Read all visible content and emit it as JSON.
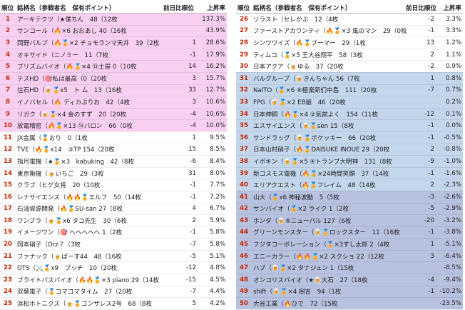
{
  "headers": {
    "rank": "順位",
    "name": "銘柄名（参戦者名　保有ポイント）",
    "diff": "前日比順位",
    "rate": "上昇率"
  },
  "left_rows": [
    {
      "rank": "1",
      "name": "アーキテクツ（★僕ちん　48（12枚",
      "diff": "",
      "rate": "137.3%",
      "band": "pink"
    },
    {
      "rank": "2",
      "name": "サンコール（🔥×6 おおあし 40（16枚",
      "diff": "",
      "rate": "43.9%",
      "band": "pink"
    },
    {
      "rank": "3",
      "name": "岡野バルブ（🔥🏅×2 チョモランマ天井　39（2枚",
      "diff": "1",
      "rate": "28.6%",
      "band": "pink"
    },
    {
      "rank": "4",
      "name": "オキサイド（ニノミー　11（7枚",
      "diff": "-1",
      "rate": "17.9%",
      "band": "pink"
    },
    {
      "rank": "5",
      "name": "プリズムバイオ（🔥🏅×4 ⑬土屋 0（10枚",
      "diff": "14",
      "rate": "16.2%",
      "band": "pink"
    },
    {
      "rank": "6",
      "name": "テスHD（🎯私は最高（0（20枚",
      "diff": "3",
      "rate": "15.7%",
      "band": "pink"
    },
    {
      "rank": "7",
      "name": "住石HD（🍺🏅x5　ト ム　13（16枚",
      "diff": "33",
      "rate": "12.7%",
      "band": "pink"
    },
    {
      "rank": "8",
      "name": "イノバセル（🔥 ディカぶりお　42（4枚",
      "diff": "3",
      "rate": "10.6%",
      "band": "pink"
    },
    {
      "rank": "9",
      "name": "リガク（🍺🏅×4 金のすず　20（20枚",
      "diff": "-4",
      "rate": "10.6%",
      "band": "pink"
    },
    {
      "rank": "10",
      "name": "放電精密（🔥🏅×13 ⑬バロン　66（0枚",
      "diff": "-4",
      "rate": "10.0%",
      "band": "pink"
    },
    {
      "rank": "11",
      "name": "JX金属（🏅おり　0（1枚",
      "diff": "1",
      "rate": "9.5%",
      "band": "white"
    },
    {
      "rank": "12",
      "name": "TVE（🔥🏅x14　③TP 154（20枚",
      "diff": "15",
      "rate": "8.5%",
      "band": "white"
    },
    {
      "rank": "13",
      "name": "指月電機（★🏅×3　kabuking　42（8枚",
      "diff": "-6",
      "rate": "8.4%",
      "band": "white"
    },
    {
      "rank": "14",
      "name": "東京衡機（🍺いちご　29（3枚",
      "diff": "31",
      "rate": "8.0%",
      "band": "white"
    },
    {
      "rank": "15",
      "name": "クラブ（ヒゲ女将　20（10枚",
      "diff": "-1",
      "rate": "7.7%",
      "band": "white"
    },
    {
      "rank": "16",
      "name": "レナサイエンス（🔥🔥🏅エルフ　50（14枚",
      "diff": "-1",
      "rate": "7.2%",
      "band": "white"
    },
    {
      "rank": "17",
      "name": "石油資源開発（🔥🏅SU-san 27（8枚",
      "diff": "4",
      "rate": "6.7%",
      "band": "white"
    },
    {
      "rank": "18",
      "name": "ワンブラ（🍺🏅x6 タコ先生　30（6枚",
      "diff": "2",
      "rate": "5.9%",
      "band": "white"
    },
    {
      "rank": "19",
      "name": "イメージワン（🎯 へへへへへ 1（2枚",
      "diff": "-1",
      "rate": "5.8%",
      "band": "white"
    },
    {
      "rank": "20",
      "name": "岡本硝子（Orz７（3枚",
      "diff": "-7",
      "rate": "5.8%",
      "band": "white"
    },
    {
      "rank": "21",
      "name": "ファナック（🍺ぱーす44　48（16枚",
      "diff": "-5",
      "rate": "5.1%",
      "band": "white"
    },
    {
      "rank": "22",
      "name": "OTS（⚔️🏅x9　ブッチ　10（20枚",
      "diff": "-12",
      "rate": "4.8%",
      "band": "white"
    },
    {
      "rank": "23",
      "name": "ブライトパスバイオ（🔥🔥🏅×3 piano 29（14枚",
      "diff": "-15",
      "rate": "4.5%",
      "band": "white"
    },
    {
      "rank": "24",
      "name": "双葉電子（🏅コマコマタイム　27（20枚",
      "diff": "-7",
      "rate": "4.4%",
      "band": "white"
    },
    {
      "rank": "25",
      "name": "浜松ホトニクス（🍺🏅ゴンザレス2号　68（8枚",
      "diff": "5",
      "rate": "4.2%",
      "band": "white"
    }
  ],
  "right_rows": [
    {
      "rank": "26",
      "name": "ソラスト（セレかぶ　12（4枚",
      "diff": "-2",
      "rate": "3.3%",
      "band": "white"
    },
    {
      "rank": "27",
      "name": "ファーストアカウンティ（🔥🏅×3 風のマン　29（0枚",
      "diff": "-1",
      "rate": "3.3%",
      "band": "white"
    },
    {
      "rank": "28",
      "name": "シンワワイズ（🔥🏅ブーマー　29（1枚",
      "diff": "13",
      "rate": "1.2%",
      "band": "white"
    },
    {
      "rank": "29",
      "name": "ティムコ（🏅×5 王大谷翔平　58（3枚",
      "diff": "2",
      "rate": "1.1%",
      "band": "white"
    },
    {
      "rank": "30",
      "name": "日本アクア（🍺ゆる　37（20枚",
      "diff": "-2",
      "rate": "0.9%",
      "band": "white"
    },
    {
      "rank": "31",
      "name": "バルグループ（🍺きんちゃん 56（7枚",
      "diff": "1",
      "rate": "0.8%",
      "band": "blue1"
    },
    {
      "rank": "32",
      "name": "NaITO（🏅×6 ⑧極楽新们中島　111（20枚",
      "diff": "-7",
      "rate": "0.7%",
      "band": "blue1"
    },
    {
      "rank": "33",
      "name": "FPG（🍺🏅×2 EB爺　46（20枚",
      "diff": "",
      "rate": "0.2%",
      "band": "blue1"
    },
    {
      "rank": "34",
      "name": "日本伸銅（🔥🏅×4 ②気前よく　154（11枚",
      "diff": "-12",
      "rate": "0.1%",
      "band": "blue1"
    },
    {
      "rank": "35",
      "name": "エスサイエンス（🍺🏅sen 15（8枚",
      "diff": "-1",
      "rate": "0.0%",
      "band": "blue1"
    },
    {
      "rank": "36",
      "name": "サンドラッグ（🍺🏅ボケッキー　66（20枚",
      "diff": "-1",
      "rate": "-0.5%",
      "band": "blue1"
    },
    {
      "rank": "37",
      "name": "日本山村硝子（🔥🏅DAISUKE INOUE 29（20枚",
      "diff": "2",
      "rate": "-0.8%",
      "band": "blue1"
    },
    {
      "rank": "38",
      "name": "イボキン（🍺🏅×5 ④トランプ大明神　131（8枚",
      "diff": "-9",
      "rate": "-1.0%",
      "band": "blue1"
    },
    {
      "rank": "39",
      "name": "新コスモス電機（🔥🏅×24時間笑顔　37（14枚",
      "diff": "-1",
      "rate": "-1.6%",
      "band": "blue1"
    },
    {
      "rank": "40",
      "name": "エリアクエスト（🔥🏅フレイム　48（14枚",
      "diff": "2",
      "rate": "-2.3%",
      "band": "blue1"
    },
    {
      "rank": "41",
      "name": "山大（🏅x6 神秘波動　5（5枚",
      "diff": "-3",
      "rate": "-2.6%",
      "band": "blue2"
    },
    {
      "rank": "42",
      "name": "サンバイオ（🏅×2 ライク 1（2枚",
      "diff": "-5",
      "rate": "-2.9%",
      "band": "blue2"
    },
    {
      "rank": "43",
      "name": "ホンダ（🍺⑥ニューパル 127（6枚",
      "diff": "-20",
      "rate": "-3.2%",
      "band": "blue2"
    },
    {
      "rank": "44",
      "name": "グリーンモンスター（🍺🏅ロックスター　11（16枚",
      "diff": "-1",
      "rate": "-3.8%",
      "band": "blue2"
    },
    {
      "rank": "45",
      "name": "フジタコーポレーション（🏅×3すし太郎 2（4枚",
      "diff": "1",
      "rate": "-5.1%",
      "band": "blue2"
    },
    {
      "rank": "46",
      "name": "エニーカラー（🔥🔥🏅×2 スクショ 22（12枚",
      "diff": "3",
      "rate": "-6.4%",
      "band": "blue2"
    },
    {
      "rank": "47",
      "name": "ハブ（🍺🏅×2 タナジュン 1（15枚",
      "diff": "",
      "rate": "-8.5%",
      "band": "blue2"
    },
    {
      "rank": "48",
      "name": "オンコリスバイオ（★🍺大石　27（18枚",
      "diff": "-4",
      "rate": "-9.4%",
      "band": "blue2"
    },
    {
      "rank": "49",
      "name": "shift（🍺🏅×4 樹吉　94（1枚",
      "diff": "-1",
      "rate": "-10.2%",
      "band": "blue2"
    },
    {
      "rank": "50",
      "name": "大谷工業（🔥ひで　72（15枚",
      "diff": "",
      "rate": "-23.5%",
      "band": "blue2"
    }
  ]
}
